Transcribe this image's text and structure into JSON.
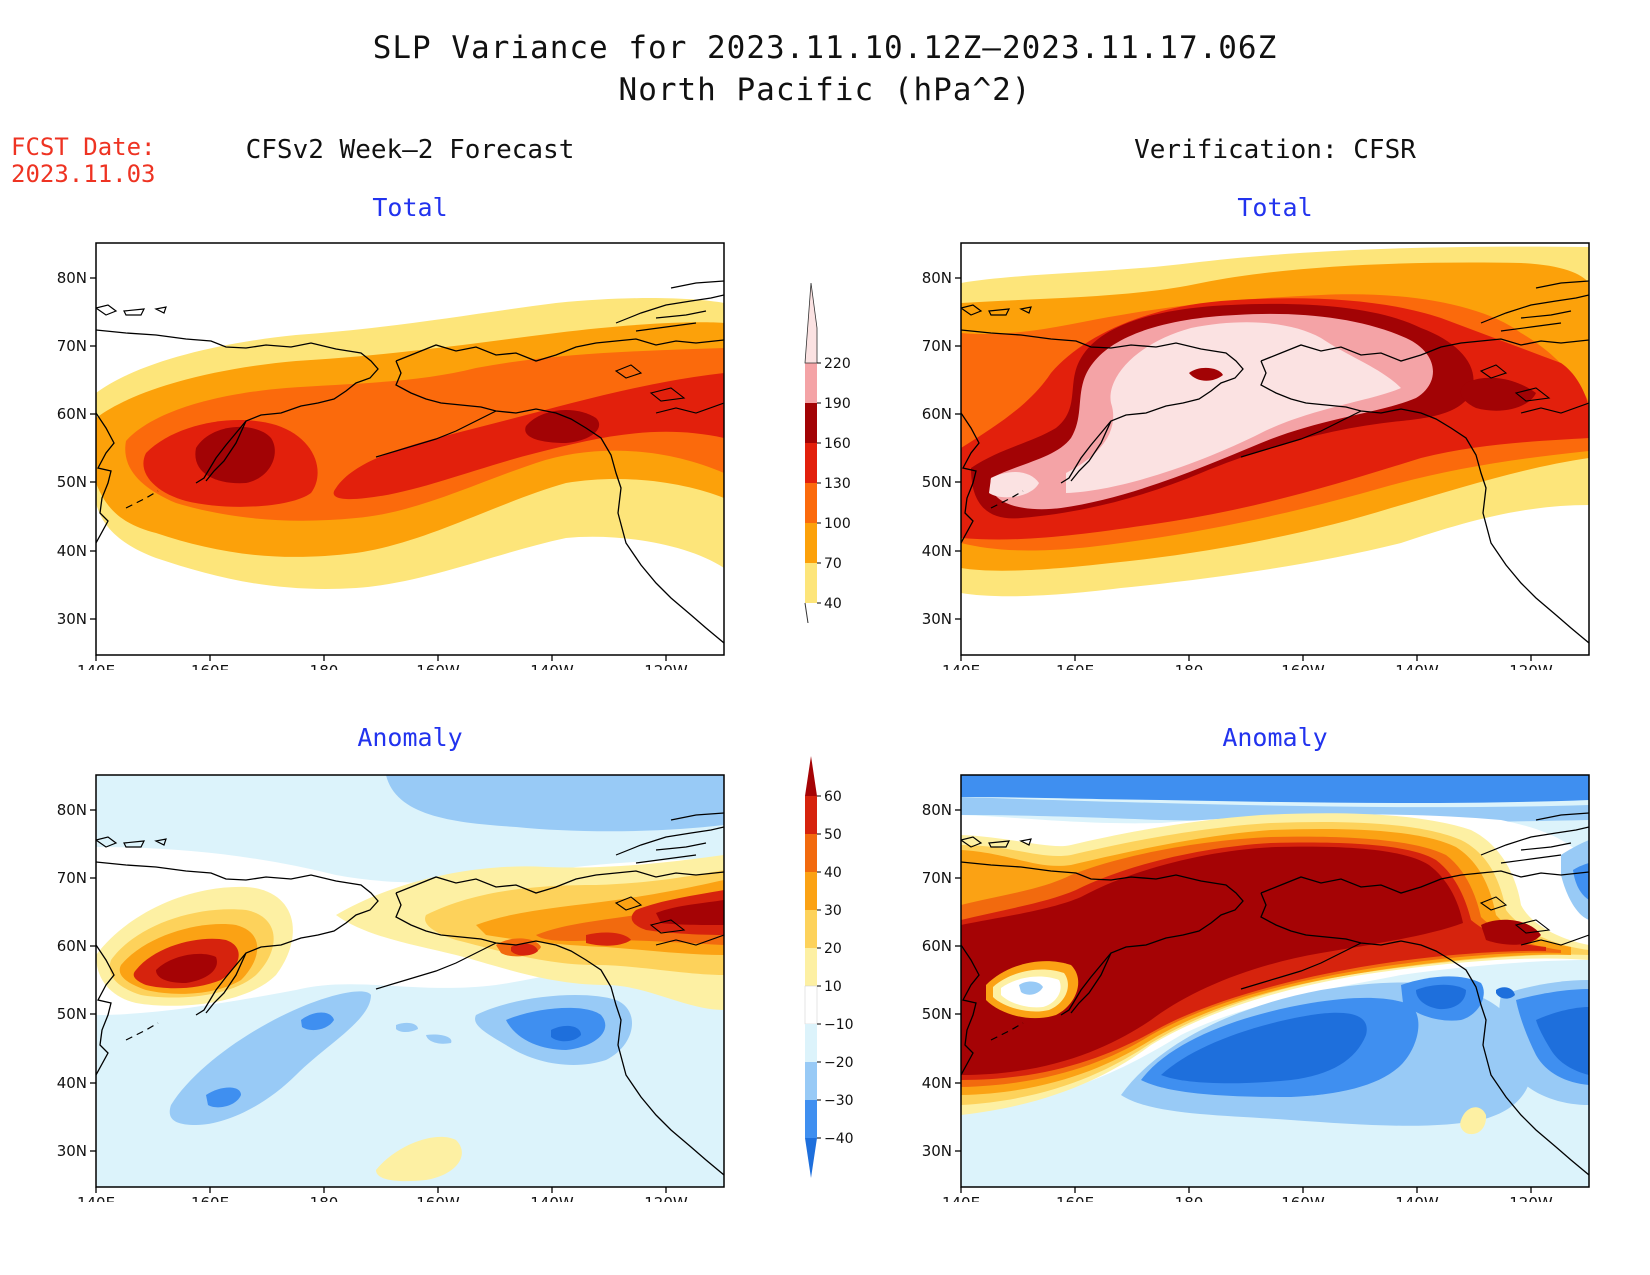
{
  "title": {
    "line1": "SLP Variance for 2023.11.10.12Z–2023.11.17.06Z",
    "line2": "North Pacific (hPa^2)"
  },
  "forecast_date": {
    "label": "FCST Date:",
    "value": "2023.11.03"
  },
  "columns": {
    "left": "CFSv2 Week–2 Forecast",
    "right": "Verification: CFSR"
  },
  "panels": {
    "top_left": "Total",
    "top_right": "Total",
    "bottom_left": "Anomaly",
    "bottom_right": "Anomaly"
  },
  "axes": {
    "lat_ticks": [
      "80N",
      "70N",
      "60N",
      "50N",
      "40N",
      "30N"
    ],
    "lon_ticks": [
      "140E",
      "160E",
      "180",
      "160W",
      "140W",
      "120W"
    ]
  },
  "colorbars": {
    "total": {
      "levels": [
        "40",
        "70",
        "100",
        "130",
        "160",
        "190",
        "220"
      ],
      "colors": [
        "#fde57a",
        "#fca10a",
        "#fb6a0c",
        "#e2200c",
        "#a20305",
        "#f4a3a6",
        "#fbe2e2"
      ]
    },
    "anomaly": {
      "levels": [
        "−40",
        "−30",
        "−20",
        "−10",
        "10",
        "20",
        "30",
        "40",
        "50",
        "60"
      ],
      "colors": [
        "#1e6fdc",
        "#3f8ff0",
        "#98caf6",
        "#dcf3fb",
        "#ffffff",
        "#fdf0a3",
        "#fdd25b",
        "#fba214",
        "#f26a0e",
        "#d6230d",
        "#a50305"
      ]
    }
  }
}
